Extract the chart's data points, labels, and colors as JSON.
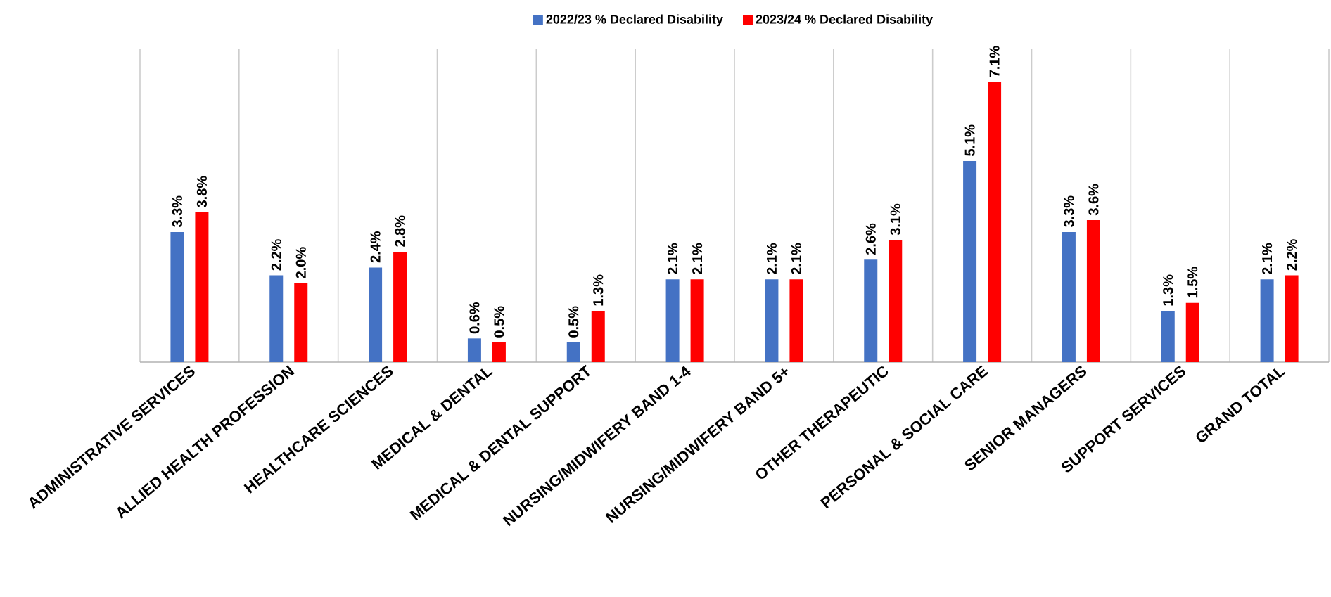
{
  "chart_data": {
    "type": "bar",
    "categories": [
      "ADMINISTRATIVE SERVICES",
      "ALLIED HEALTH PROFESSION",
      "HEALTHCARE SCIENCES",
      "MEDICAL & DENTAL",
      "MEDICAL & DENTAL SUPPORT",
      "NURSING/MIDWIFERY BAND 1-4",
      "NURSING/MIDWIFERY BAND 5+",
      "OTHER THERAPEUTIC",
      "PERSONAL & SOCIAL CARE",
      "SENIOR MANAGERS",
      "SUPPORT SERVICES",
      "GRAND TOTAL"
    ],
    "series": [
      {
        "name": "2022/23 % Declared Disability",
        "color": "#4472c4",
        "values": [
          3.3,
          2.2,
          2.4,
          0.6,
          0.5,
          2.1,
          2.1,
          2.6,
          5.1,
          3.3,
          1.3,
          2.1
        ],
        "value_labels": [
          "3.3%",
          "2.2%",
          "2.4%",
          "0.6%",
          "0.5%",
          "2.1%",
          "2.1%",
          "2.6%",
          "5.1%",
          "3.3%",
          "1.3%",
          "2.1%"
        ]
      },
      {
        "name": "2023/24 % Declared Disability",
        "color": "#ff0000",
        "values": [
          3.8,
          2.0,
          2.8,
          0.5,
          1.3,
          2.1,
          2.1,
          3.1,
          7.1,
          3.6,
          1.5,
          2.2
        ],
        "value_labels": [
          "3.8%",
          "2.0%",
          "2.8%",
          "0.5%",
          "1.3%",
          "2.1%",
          "2.1%",
          "3.1%",
          "7.1%",
          "3.6%",
          "1.5%",
          "2.2%"
        ]
      }
    ],
    "grid": "x",
    "legend": "top"
  }
}
